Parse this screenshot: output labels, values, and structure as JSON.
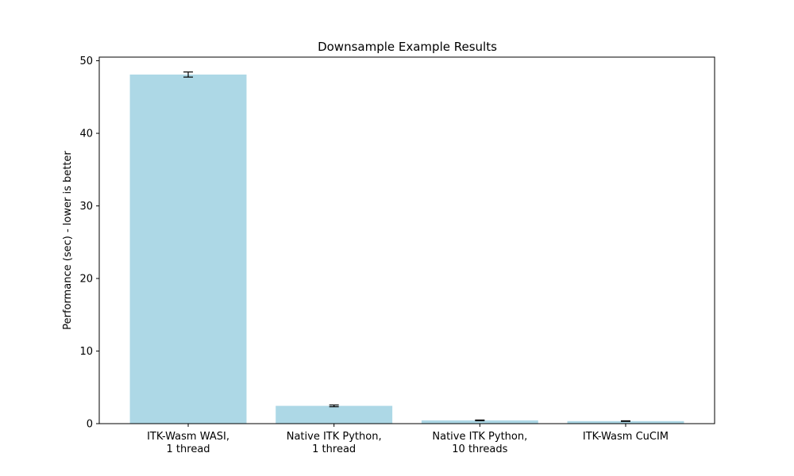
{
  "chart_data": {
    "type": "bar",
    "title": "Downsample Example Results",
    "xlabel": "",
    "ylabel": "Performance (sec) - lower is better",
    "categories": [
      [
        "ITK-Wasm WASI,",
        "1 thread"
      ],
      [
        "Native ITK Python,",
        "1 thread"
      ],
      [
        "Native ITK Python,",
        "10 threads"
      ],
      [
        "ITK-Wasm CuCIM"
      ]
    ],
    "values": [
      48.1,
      2.45,
      0.45,
      0.35
    ],
    "errors": [
      0.35,
      0.12,
      0.05,
      0.04
    ],
    "ylim": [
      0,
      50.5
    ],
    "yticks": [
      0,
      10,
      20,
      30,
      40,
      50
    ],
    "bar_color": "#add8e6",
    "grid": false,
    "legend": "none"
  }
}
